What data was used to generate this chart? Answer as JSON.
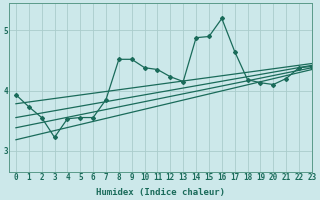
{
  "background_color": "#cce8ea",
  "grid_color": "#aacccc",
  "line_color": "#1a6b5a",
  "xlabel": "Humidex (Indice chaleur)",
  "xlim": [
    -0.5,
    23
  ],
  "ylim": [
    2.65,
    5.45
  ],
  "yticks": [
    3,
    4,
    5
  ],
  "xticks": [
    0,
    1,
    2,
    3,
    4,
    5,
    6,
    7,
    8,
    9,
    10,
    11,
    12,
    13,
    14,
    15,
    16,
    17,
    18,
    19,
    20,
    21,
    22,
    23
  ],
  "scatter_x": [
    0,
    1,
    2,
    3,
    4,
    5,
    6,
    7,
    8,
    9,
    10,
    11,
    12,
    13,
    14,
    15,
    16,
    17,
    18,
    19,
    20,
    21,
    22,
    23
  ],
  "scatter_y": [
    3.93,
    3.73,
    3.55,
    3.22,
    3.53,
    3.55,
    3.55,
    3.85,
    4.52,
    4.52,
    4.38,
    4.35,
    4.23,
    4.15,
    4.88,
    4.9,
    5.2,
    4.65,
    4.18,
    4.13,
    4.1,
    4.2,
    4.38,
    4.4
  ],
  "line1_x": [
    0,
    23
  ],
  "line1_y": [
    3.55,
    4.42
  ],
  "line2_x": [
    0,
    23
  ],
  "line2_y": [
    3.38,
    4.38
  ],
  "line3_x": [
    0,
    23
  ],
  "line3_y": [
    3.18,
    4.35
  ],
  "line4_x": [
    0,
    23
  ],
  "line4_y": [
    3.78,
    4.45
  ],
  "figwidth": 3.2,
  "figheight": 2.0,
  "dpi": 100
}
